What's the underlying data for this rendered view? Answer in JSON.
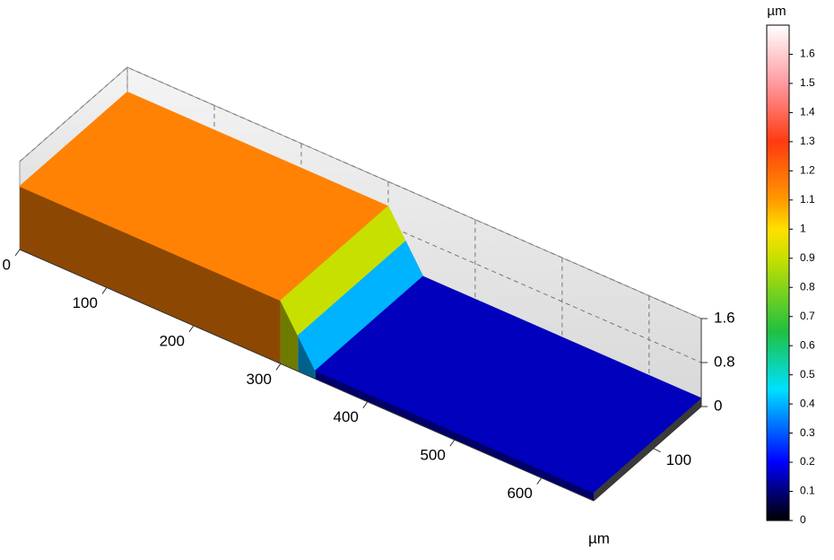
{
  "chart_data": {
    "type": "surface",
    "x_unit": "µm",
    "xlim": [
      0,
      660
    ],
    "xticks": [
      0,
      100,
      200,
      300,
      400,
      500,
      600
    ],
    "ylim": [
      0,
      180
    ],
    "yticks": [
      100
    ],
    "zlim": [
      0,
      1.6
    ],
    "zticks": [
      0,
      0.8,
      1.6
    ],
    "grid": true,
    "surface": {
      "x": [
        0,
        300,
        320,
        340,
        660
      ],
      "z": [
        1.15,
        1.15,
        0.65,
        0.15,
        0.15
      ]
    },
    "colorbar": {
      "unit": "µm",
      "lim": [
        0,
        1.7
      ],
      "ticks": [
        0,
        0.1,
        0.2,
        0.3,
        0.4,
        0.5,
        0.6,
        0.7,
        0.8,
        0.9,
        1,
        1.1,
        1.2,
        1.3,
        1.4,
        1.5,
        1.6
      ]
    },
    "colormap": [
      [
        0,
        "#000000"
      ],
      [
        0.1,
        "#00007a"
      ],
      [
        0.2,
        "#0000ff"
      ],
      [
        0.45,
        "#00e0ff"
      ],
      [
        0.65,
        "#20c040"
      ],
      [
        0.9,
        "#c8e000"
      ],
      [
        1.0,
        "#ffe000"
      ],
      [
        1.1,
        "#ff9a00"
      ],
      [
        1.3,
        "#ff3a10"
      ],
      [
        1.5,
        "#ff9aa0"
      ],
      [
        1.7,
        "#ffffff"
      ]
    ]
  }
}
